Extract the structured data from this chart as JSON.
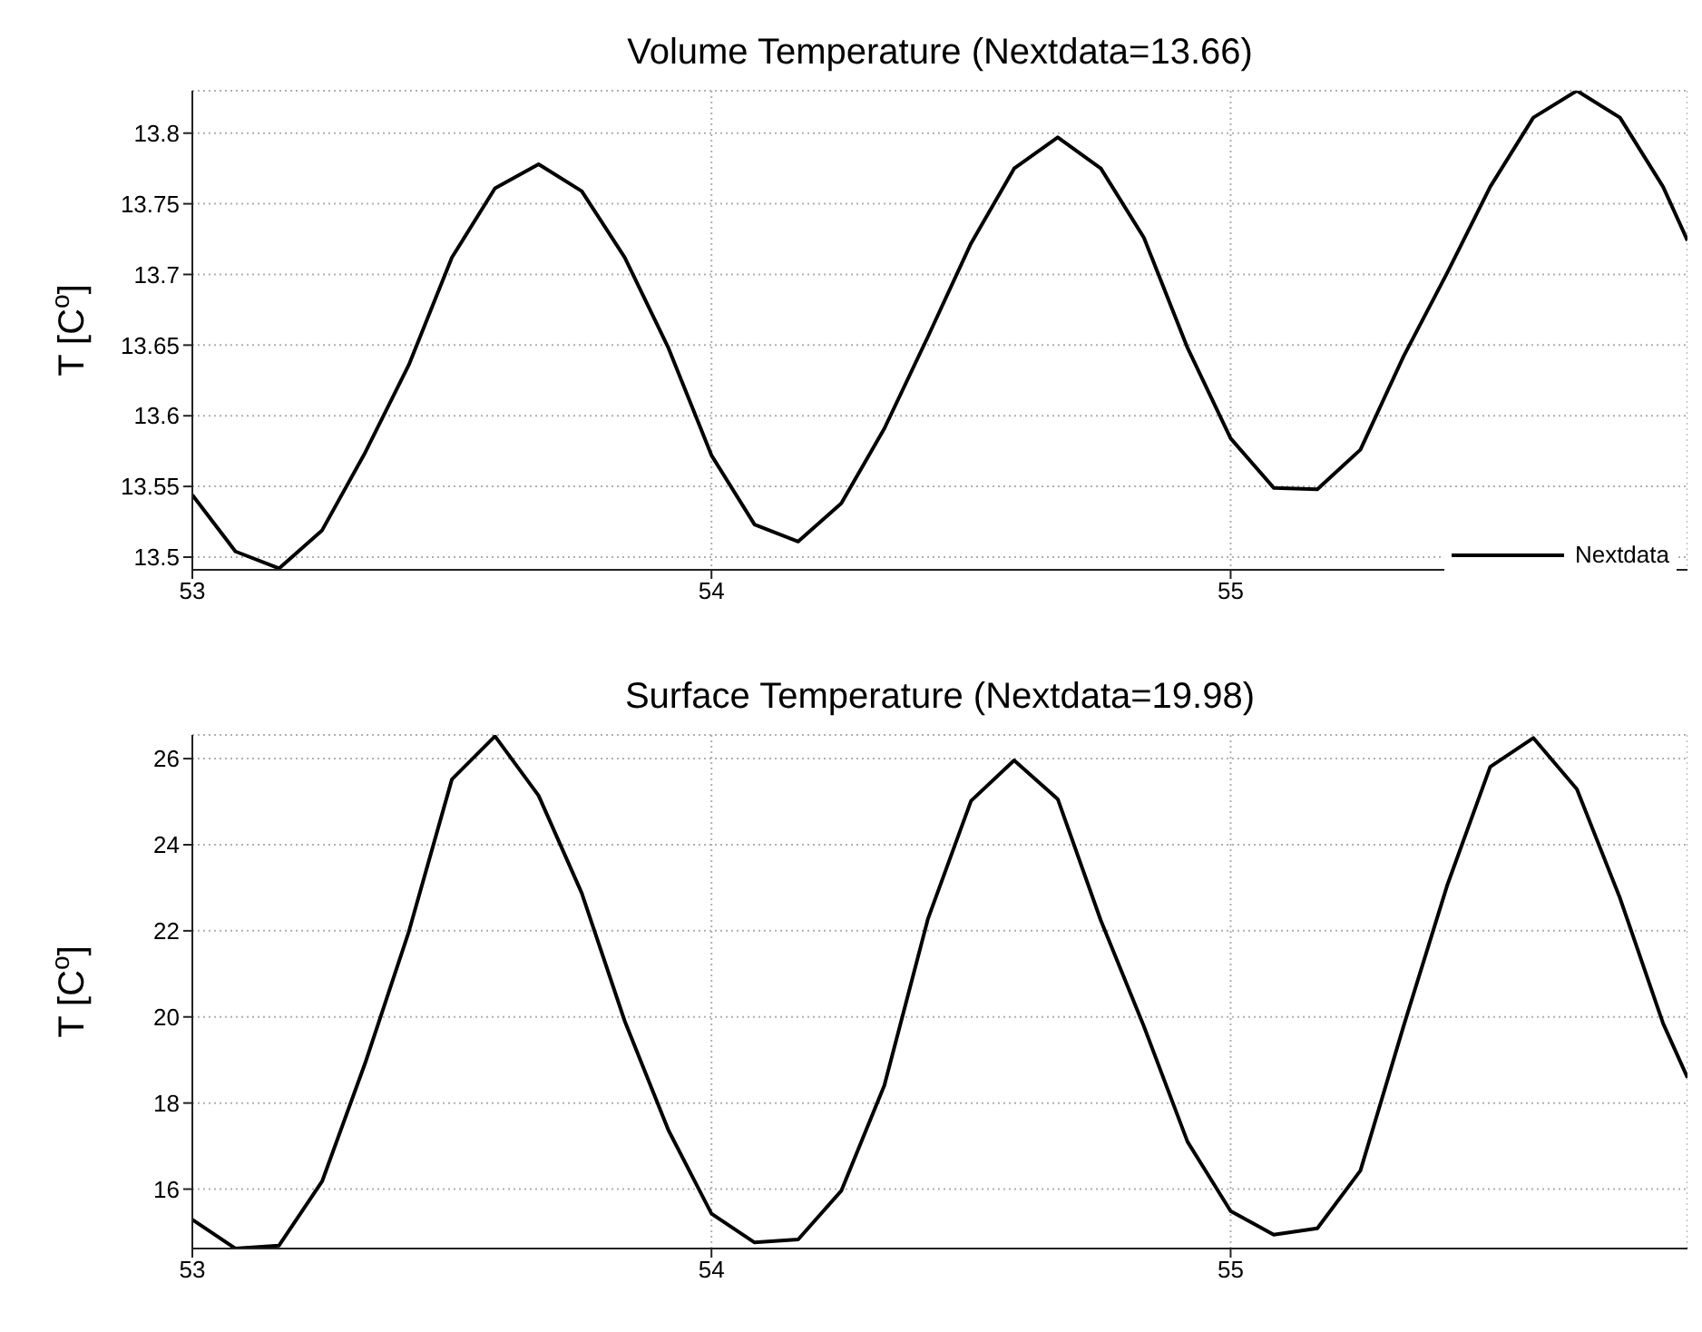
{
  "chart_data": [
    {
      "type": "line",
      "title": "Volume Temperature (Nextdata=13.66)",
      "ylabel": "T [C$^{o}$]",
      "x": [
        53,
        53.083,
        53.167,
        53.25,
        53.333,
        53.417,
        53.5,
        53.583,
        53.667,
        53.75,
        53.833,
        53.917,
        54,
        54.083,
        54.167,
        54.25,
        54.333,
        54.417,
        54.5,
        54.583,
        54.667,
        54.75,
        54.833,
        54.917,
        55,
        55.083,
        55.167,
        55.25,
        55.333,
        55.417,
        55.5,
        55.583,
        55.667,
        55.75,
        55.833,
        55.88
      ],
      "series": [
        {
          "name": "Nextdata",
          "color": "#000000",
          "values": [
            13.544,
            13.504,
            13.492,
            13.519,
            13.574,
            13.636,
            13.712,
            13.761,
            13.778,
            13.759,
            13.712,
            13.648,
            13.572,
            13.523,
            13.511,
            13.538,
            13.591,
            13.656,
            13.722,
            13.775,
            13.797,
            13.775,
            13.726,
            13.648,
            13.584,
            13.549,
            13.548,
            13.576,
            13.642,
            13.701,
            13.762,
            13.811,
            13.83,
            13.811,
            13.762,
            13.724
          ]
        }
      ],
      "xlim": [
        53,
        55.88
      ],
      "xticks": [
        53,
        54,
        55
      ],
      "ylim": [
        13.491,
        13.83
      ],
      "yticks": [
        13.5,
        13.55,
        13.6,
        13.65,
        13.7,
        13.75,
        13.8
      ],
      "grid": true,
      "legend": "bottom right",
      "line_style": "solid",
      "marker": "none"
    },
    {
      "type": "line",
      "title": "Surface Temperature (Nextdata=19.98)",
      "ylabel": "T [C$^{o}$]",
      "x": [
        53,
        53.083,
        53.167,
        53.25,
        53.333,
        53.417,
        53.5,
        53.583,
        53.667,
        53.75,
        53.833,
        53.917,
        54,
        54.083,
        54.167,
        54.25,
        54.333,
        54.417,
        54.5,
        54.583,
        54.667,
        54.75,
        54.833,
        54.917,
        55,
        55.083,
        55.167,
        55.25,
        55.333,
        55.417,
        55.5,
        55.583,
        55.667,
        55.75,
        55.833,
        55.88
      ],
      "series": [
        {
          "color": "#000000",
          "values": [
            15.29,
            14.62,
            14.69,
            16.18,
            18.93,
            21.98,
            25.52,
            26.52,
            25.14,
            22.88,
            19.9,
            17.37,
            15.43,
            14.76,
            14.83,
            15.96,
            18.41,
            22.28,
            25.02,
            25.96,
            25.06,
            22.24,
            19.78,
            17.1,
            15.49,
            14.94,
            15.09,
            16.43,
            19.78,
            23.05,
            25.81,
            26.48,
            25.29,
            22.76,
            19.85,
            18.59
          ]
        }
      ],
      "xlim": [
        53,
        55.88
      ],
      "xticks": [
        53,
        54,
        55
      ],
      "ylim": [
        14.62,
        26.55
      ],
      "yticks": [
        16,
        18,
        20,
        22,
        24,
        26
      ],
      "grid": true,
      "line_style": "solid",
      "marker": "none"
    }
  ]
}
